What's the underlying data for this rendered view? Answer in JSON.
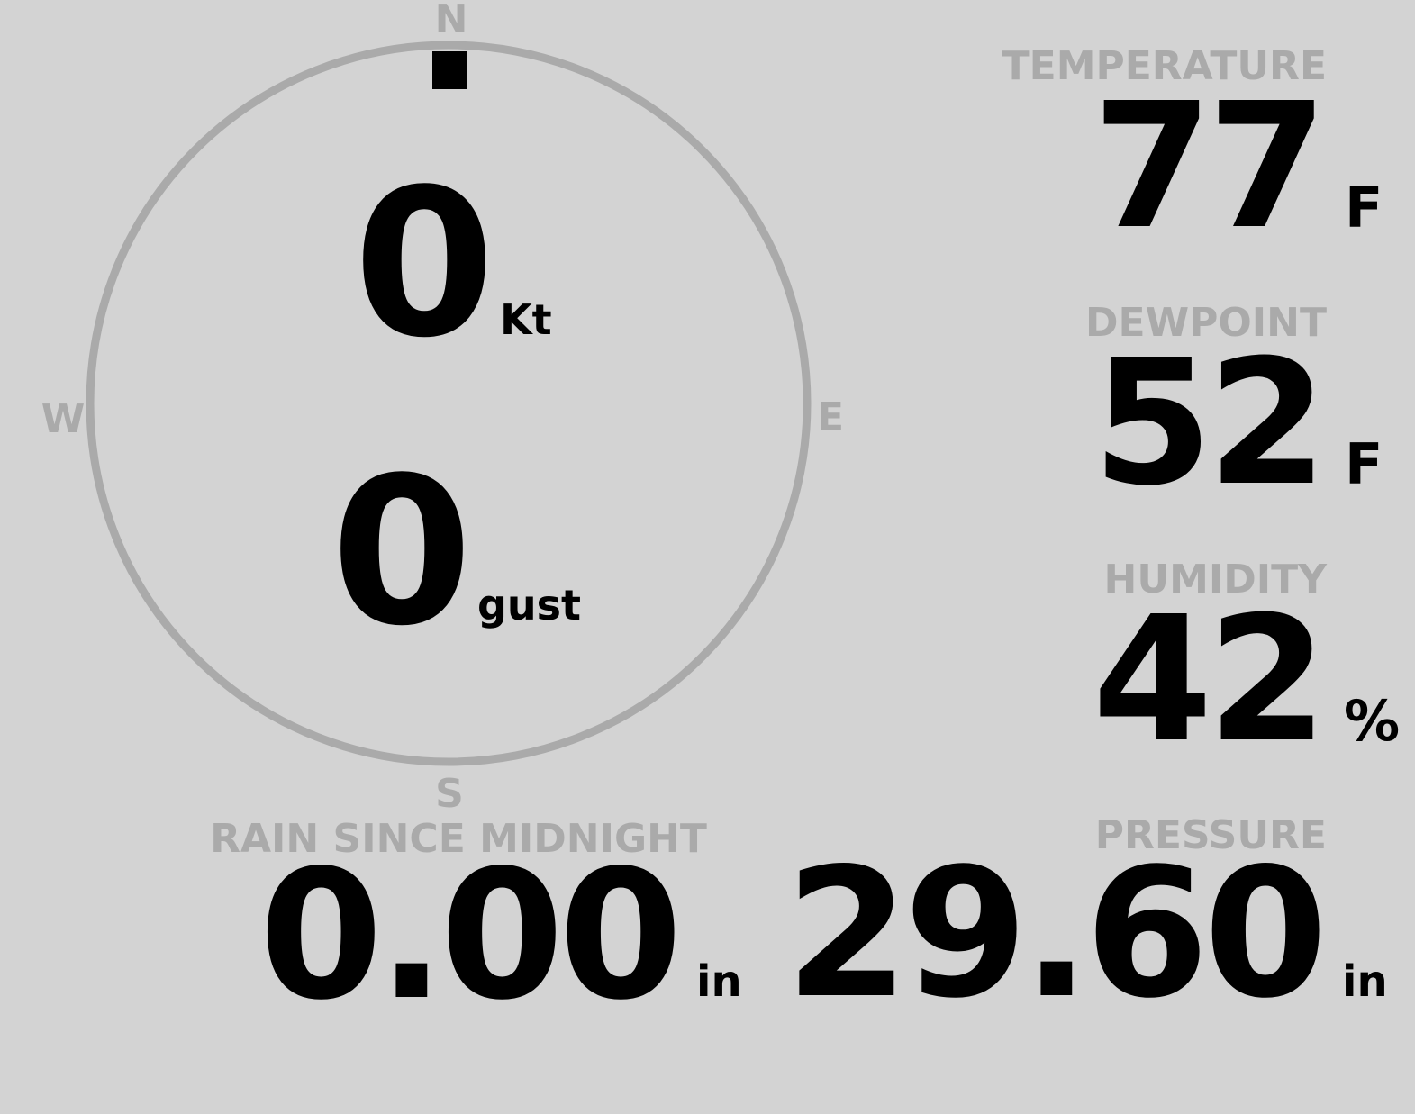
{
  "colors": {
    "background": "#d3d3d3",
    "label": "#aaaaaa",
    "value": "#000000",
    "compass_ring": "#aaaaaa",
    "direction_marker": "#000000"
  },
  "wind": {
    "compass": {
      "n": "N",
      "e": "E",
      "s": "S",
      "w": "W"
    },
    "direction_deg": 0,
    "speed": "0",
    "speed_unit": "Kt",
    "gust": "0",
    "gust_unit": "gust"
  },
  "temperature": {
    "label": "TEMPERATURE",
    "value": "77",
    "unit": "F"
  },
  "dewpoint": {
    "label": "DEWPOINT",
    "value": "52",
    "unit": "F"
  },
  "humidity": {
    "label": "HUMIDITY",
    "value": "42",
    "unit": "%"
  },
  "rain": {
    "label": "RAIN SINCE MIDNIGHT",
    "value": "0.00",
    "unit": "in"
  },
  "pressure": {
    "label": "PRESSURE",
    "value": "29.60",
    "unit": "in"
  }
}
